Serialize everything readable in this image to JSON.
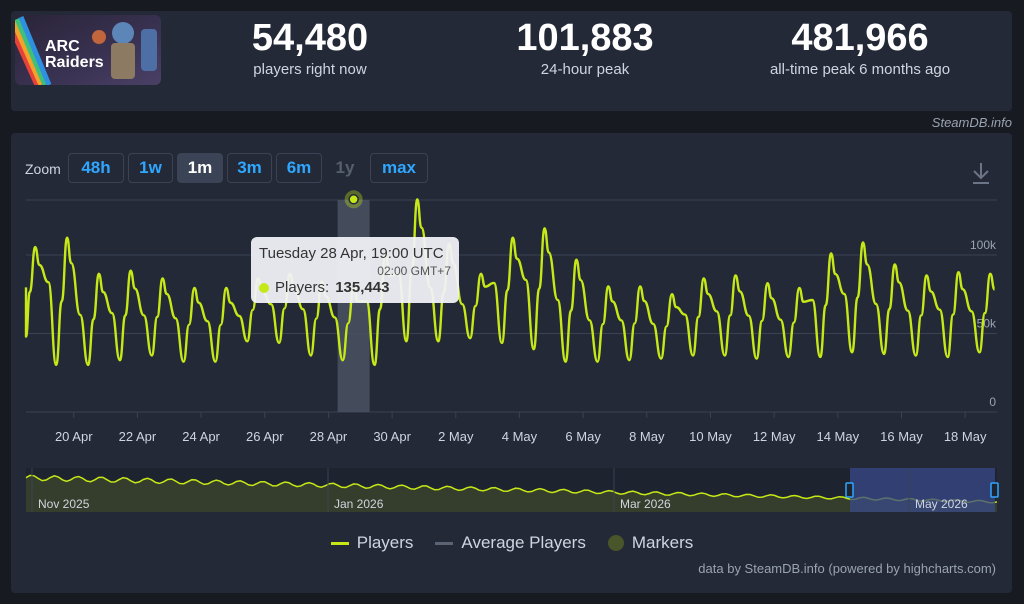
{
  "stats": [
    {
      "value": "54,480",
      "label": "players right now"
    },
    {
      "value": "101,883",
      "label": "24-hour peak"
    },
    {
      "value": "481,966",
      "label": "all-time peak 6 months ago"
    }
  ],
  "game_logo_text": "ARC Raiders",
  "credit_top": "SteamDB.info",
  "zoom": {
    "label": "Zoom",
    "buttons": [
      {
        "label": "48h",
        "state": "normal"
      },
      {
        "label": "1w",
        "state": "normal"
      },
      {
        "label": "1m",
        "state": "active"
      },
      {
        "label": "3m",
        "state": "normal"
      },
      {
        "label": "6m",
        "state": "normal"
      },
      {
        "label": "1y",
        "state": "disabled"
      },
      {
        "label": "max",
        "state": "normal"
      }
    ]
  },
  "tooltip": {
    "title": "Tuesday 28 Apr, 19:00 UTC",
    "subtitle": "02:00 GMT+7",
    "series_label": "Players:",
    "value": "135,443"
  },
  "legend": {
    "players": "Players",
    "average": "Average Players",
    "markers": "Markers"
  },
  "credit_bottom": "data by SteamDB.info (powered by highcharts.com)",
  "colors": {
    "players": "#c6e817",
    "average": "#5b6475",
    "markers": "#49552a",
    "accent": "#2fa7ff",
    "background": "#171a21",
    "panel": "#232937"
  },
  "chart_data": {
    "type": "line",
    "title": "",
    "xlabel": "",
    "ylabel": "",
    "ylim": [
      0,
      135000
    ],
    "y_ticks": [
      {
        "value": 0,
        "label": "0"
      },
      {
        "value": 50000,
        "label": "50k"
      },
      {
        "value": 100000,
        "label": "100k"
      }
    ],
    "x_ticks": [
      "20 Apr",
      "22 Apr",
      "24 Apr",
      "26 Apr",
      "28 Apr",
      "30 Apr",
      "2 May",
      "4 May",
      "6 May",
      "8 May",
      "10 May",
      "12 May",
      "14 May",
      "16 May",
      "18 May"
    ],
    "x_start": "2026-04-18T12:00",
    "x_end": "2026-05-19T00:00",
    "series": [
      {
        "name": "Players",
        "daily_peaks": [
          105000,
          111000,
          88000,
          90000,
          85000,
          79000,
          79000,
          85000,
          88000,
          83000,
          80000,
          101000,
          135443,
          107000,
          88000,
          111000,
          117000,
          97000,
          80000,
          80000,
          75000,
          85000,
          87000,
          82000,
          79000,
          101000,
          108000,
          94000,
          87000,
          89000,
          88000,
          95000,
          100000
        ],
        "daily_troughs": [
          48000,
          30000,
          30000,
          33000,
          36000,
          32000,
          32000,
          45000,
          44000,
          36000,
          33000,
          30000,
          45000,
          45000,
          47000,
          44000,
          40000,
          32000,
          32000,
          33000,
          34000,
          36000,
          36000,
          34000,
          35000,
          35000,
          38000,
          37000,
          36000,
          35000,
          38000,
          38000,
          30000
        ]
      }
    ],
    "highlighted_point": {
      "x": "2026-04-28T19:00",
      "y": 135443
    },
    "navigator": {
      "labels": [
        "Nov 2025",
        "Jan 2026",
        "Mar 2026",
        "May 2026"
      ],
      "selected_range": [
        "2026-04-18",
        "2026-05-19"
      ]
    }
  }
}
